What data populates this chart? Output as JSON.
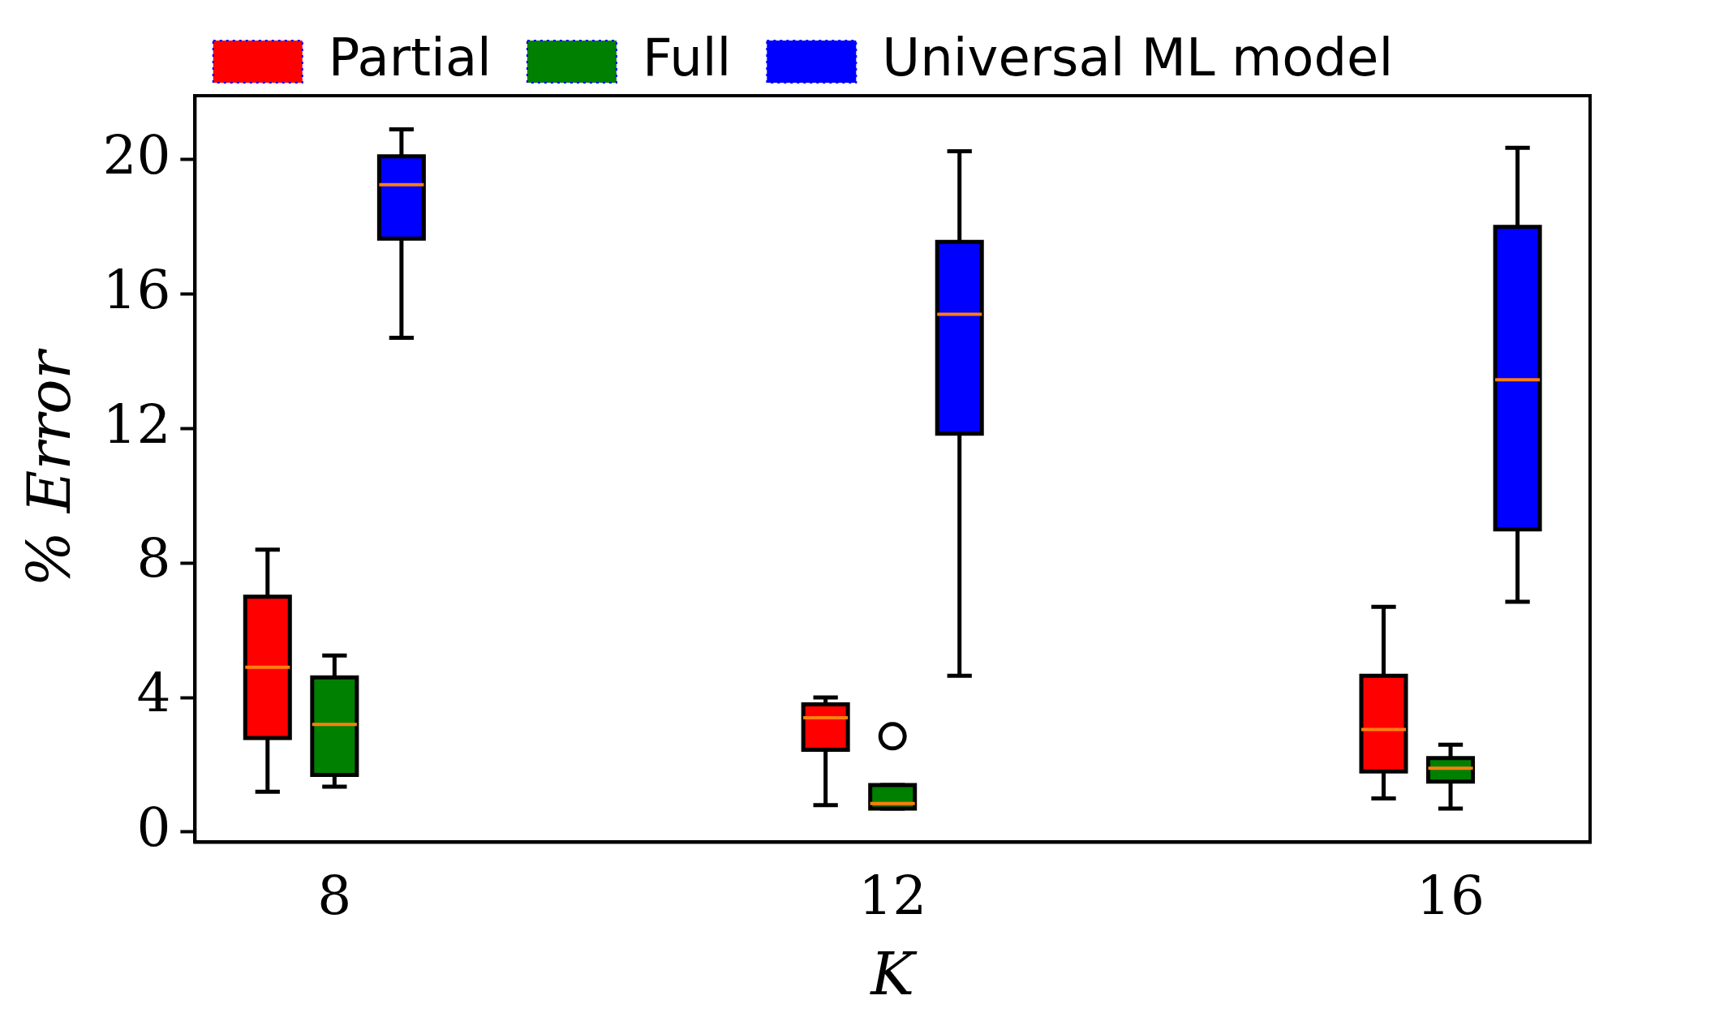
{
  "chart_data": {
    "type": "box",
    "xlabel": "K",
    "ylabel": "% Error",
    "categories": [
      "8",
      "12",
      "16"
    ],
    "ylim": [
      -0.3,
      21.9
    ],
    "yticks": [
      0,
      4,
      8,
      12,
      16,
      20
    ],
    "legend": "top",
    "grid": false,
    "series": [
      {
        "name": "Partial",
        "color": "#ff0000",
        "boxes": [
          {
            "low": 1.2,
            "q1": 2.8,
            "median": 4.9,
            "q3": 7.0,
            "high": 8.4
          },
          {
            "low": 0.8,
            "q1": 2.45,
            "median": 3.4,
            "q3": 3.8,
            "high": 4.0
          },
          {
            "low": 1.0,
            "q1": 1.8,
            "median": 3.05,
            "q3": 4.65,
            "high": 6.7
          }
        ]
      },
      {
        "name": "Full",
        "color": "#008000",
        "boxes": [
          {
            "low": 1.35,
            "q1": 1.7,
            "median": 3.2,
            "q3": 4.6,
            "high": 5.25
          },
          {
            "low": 0.7,
            "q1": 0.7,
            "median": 0.85,
            "q3": 1.4,
            "high": 1.4,
            "outliers": [
              2.85
            ]
          },
          {
            "low": 0.7,
            "q1": 1.5,
            "median": 1.9,
            "q3": 2.2,
            "high": 2.6
          }
        ]
      },
      {
        "name": "Universal ML model",
        "color": "#0000ff",
        "boxes": [
          {
            "low": 14.7,
            "q1": 17.65,
            "median": 19.25,
            "q3": 20.1,
            "high": 20.9
          },
          {
            "low": 4.65,
            "q1": 11.85,
            "median": 15.4,
            "q3": 17.55,
            "high": 20.25
          },
          {
            "low": 6.85,
            "q1": 9.0,
            "median": 13.45,
            "q3": 18.0,
            "high": 20.35
          }
        ]
      }
    ]
  }
}
